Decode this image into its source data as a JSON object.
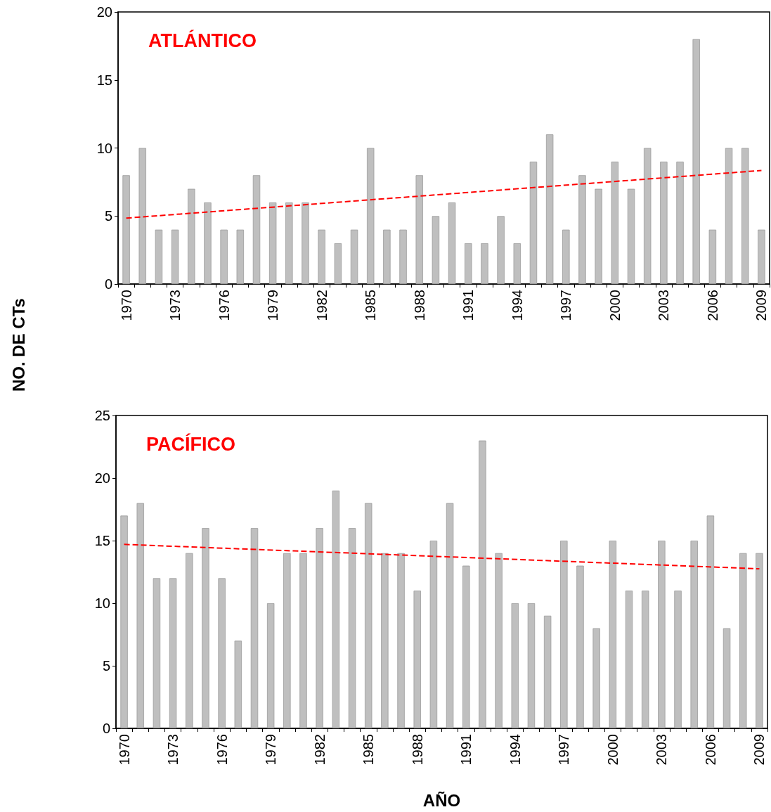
{
  "chart_data": [
    {
      "type": "bar",
      "title": "ATLÁNTICO",
      "ylabel": "NO. DE CTs",
      "categories": [
        "1970",
        null,
        null,
        "1973",
        null,
        null,
        "1976",
        null,
        null,
        "1979",
        null,
        null,
        "1982",
        null,
        null,
        "1985",
        null,
        null,
        "1988",
        null,
        null,
        "1991",
        null,
        null,
        "1994",
        null,
        null,
        "1997",
        null,
        null,
        "2000",
        null,
        null,
        "2003",
        null,
        null,
        "2006",
        null,
        null,
        "2009"
      ],
      "series": [
        {
          "color": "#bfbfbf",
          "values": [
            8,
            10,
            4,
            4,
            7,
            6,
            4,
            4,
            8,
            6,
            6,
            6,
            4,
            3,
            4,
            10,
            4,
            4,
            8,
            5,
            6,
            3,
            3,
            5,
            3,
            9,
            11,
            4,
            8,
            7,
            9,
            7,
            10,
            9,
            9,
            18,
            4,
            10,
            10,
            4
          ]
        },
        {
          "type": "line",
          "color": "#ff0000",
          "values": [
            4.85,
            null,
            null,
            null,
            null,
            null,
            null,
            null,
            null,
            null,
            null,
            null,
            null,
            null,
            null,
            null,
            null,
            null,
            null,
            null,
            null,
            null,
            null,
            null,
            null,
            null,
            null,
            null,
            null,
            null,
            null,
            null,
            null,
            null,
            null,
            null,
            null,
            null,
            null,
            8.35
          ],
          "line_style": "dashed",
          "marker": "none"
        }
      ],
      "ylim": [
        0,
        20
      ],
      "yticks": [
        0,
        5,
        10,
        15,
        20
      ],
      "grid": false
    },
    {
      "type": "bar",
      "title": "PACÍFICO",
      "xlabel": "AÑO",
      "categories": [
        "1970",
        null,
        null,
        "1973",
        null,
        null,
        "1976",
        null,
        null,
        "1979",
        null,
        null,
        "1982",
        null,
        null,
        "1985",
        null,
        null,
        "1988",
        null,
        null,
        "1991",
        null,
        null,
        "1994",
        null,
        null,
        "1997",
        null,
        null,
        "2000",
        null,
        null,
        "2003",
        null,
        null,
        "2006",
        null,
        null,
        "2009"
      ],
      "series": [
        {
          "color": "#bfbfbf",
          "values": [
            17,
            18,
            12,
            12,
            14,
            16,
            12,
            7,
            16,
            10,
            14,
            14,
            16,
            19,
            16,
            18,
            14,
            14,
            11,
            15,
            18,
            13,
            23,
            14,
            10,
            10,
            9,
            15,
            13,
            8,
            15,
            11,
            11,
            15,
            11,
            15,
            17,
            8,
            14,
            14
          ]
        },
        {
          "type": "line",
          "color": "#ff0000",
          "values": [
            14.7,
            null,
            null,
            null,
            null,
            null,
            null,
            null,
            null,
            null,
            null,
            null,
            null,
            null,
            null,
            null,
            null,
            null,
            null,
            null,
            null,
            null,
            null,
            null,
            null,
            null,
            null,
            null,
            null,
            null,
            null,
            null,
            null,
            null,
            null,
            null,
            null,
            null,
            null,
            12.75
          ],
          "line_style": "dashed",
          "marker": "none"
        }
      ],
      "ylim": [
        0,
        25
      ],
      "yticks": [
        0,
        5,
        10,
        15,
        20,
        25
      ],
      "grid": false
    }
  ]
}
